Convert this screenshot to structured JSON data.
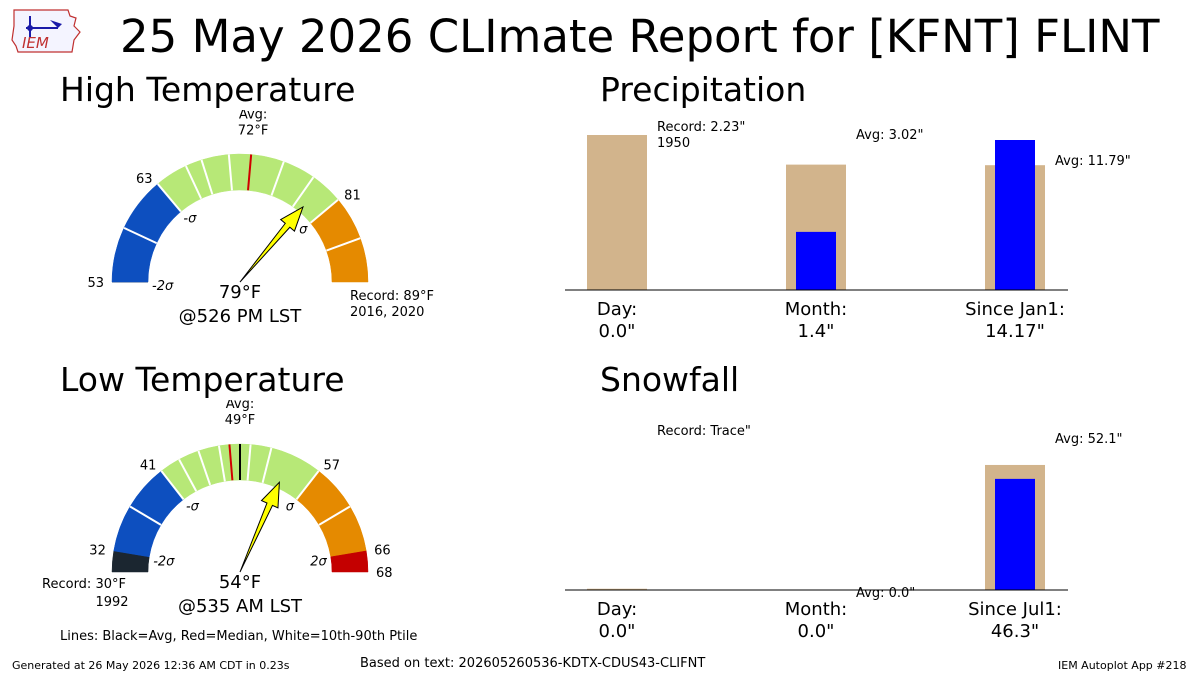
{
  "title": "25 May 2026 CLImate Report for [KFNT] FLINT",
  "logo_text": "IEM",
  "footer": {
    "generated": "Generated at 26 May 2026 12:36 AM CDT in 0.23s",
    "source": "Based on text: 202605260536-KDTX-CDUS43-CLIFNT",
    "app": "IEM Autoplot App #218"
  },
  "legend_note": "Lines: Black=Avg, Red=Median, White=10th-90th Ptile",
  "colors": {
    "below_2sigma": "#1b2630",
    "below_sigma": "#0d4fbf",
    "normal": "#b7e877",
    "above_sigma": "#e58a00",
    "above_2sigma": "#c40000",
    "bar_avg": "#d2b48c",
    "bar_obs": "#0000ff",
    "arrow": "#ffff00"
  },
  "chart_data": [
    {
      "type": "gauge",
      "title": "High Temperature",
      "range": [
        53,
        89
      ],
      "avg": 72,
      "avg_label": "Avg:",
      "avg_value_label": "72°F",
      "median": 72,
      "observed": 79,
      "observed_label": "79°F",
      "time_label": "@526 PM LST",
      "sigma": [
        63,
        81
      ],
      "two_sigma": [
        53,
        91
      ],
      "percentile_lines": [
        66,
        67.5,
        70,
        75,
        78
      ],
      "record_text": "Record: 89°F",
      "record_years": "2016, 2020",
      "tick_labels": [
        {
          "value": 53,
          "text": "53"
        },
        {
          "value": 63,
          "text": "63"
        },
        {
          "value": 81,
          "text": "81"
        }
      ],
      "sigma_labels": [
        {
          "value": 53,
          "text": "-2σ"
        },
        {
          "value": 63,
          "text": "-σ"
        },
        {
          "value": 81,
          "text": "σ"
        }
      ],
      "lower_limit": 53,
      "upper_limit": 89
    },
    {
      "type": "gauge",
      "title": "Low Temperature",
      "range": [
        30,
        68
      ],
      "avg": 49,
      "avg_label": "Avg:",
      "avg_value_label": "49°F",
      "median": 48,
      "observed": 54,
      "observed_label": "54°F",
      "time_label": "@535 AM LST",
      "sigma": [
        41,
        57
      ],
      "two_sigma": [
        32,
        66
      ],
      "percentile_lines": [
        43,
        45,
        47,
        50,
        52
      ],
      "record_text": "Record: 30°F",
      "record_years": "1992",
      "tick_labels": [
        {
          "value": 32,
          "text": "32"
        },
        {
          "value": 41,
          "text": "41"
        },
        {
          "value": 57,
          "text": "57"
        },
        {
          "value": 66,
          "text": "66"
        },
        {
          "value": 68,
          "text": "68"
        }
      ],
      "sigma_labels": [
        {
          "value": 32,
          "text": "-2σ"
        },
        {
          "value": 41,
          "text": "-σ"
        },
        {
          "value": 57,
          "text": "σ"
        },
        {
          "value": 66,
          "text": "2σ"
        }
      ],
      "lower_limit": 30,
      "upper_limit": 68
    },
    {
      "type": "bar",
      "title": "Precipitation",
      "categories": [
        "Day:",
        "Month:",
        "Since Jan1:"
      ],
      "values": [
        0.0,
        1.4,
        14.17
      ],
      "value_labels": [
        "0.0\"",
        "1.4\"",
        "14.17\""
      ],
      "normalized": [
        0.0,
        0.465,
        1.2
      ],
      "avg": [
        2.23,
        3.02,
        11.79
      ],
      "annotations": [
        {
          "text": "Record: 2.23\"",
          "text2": "1950"
        },
        {
          "text": "Avg: 3.02\""
        },
        {
          "text": "Avg: 11.79\""
        }
      ]
    },
    {
      "type": "bar",
      "title": "Snowfall",
      "categories": [
        "Day:",
        "Month:",
        "Since Jul1:"
      ],
      "values": [
        0.0,
        0.0,
        46.3
      ],
      "value_labels": [
        "0.0\"",
        "0.0\"",
        "46.3\""
      ],
      "normalized": [
        0.0,
        0.0,
        0.889
      ],
      "avg": [
        0.0,
        0.0,
        52.1
      ],
      "annotations": [
        {
          "text": "Record: Trace\""
        },
        {
          "text": "Avg: 0.0\""
        },
        {
          "text": "Avg: 52.1\""
        }
      ]
    }
  ]
}
